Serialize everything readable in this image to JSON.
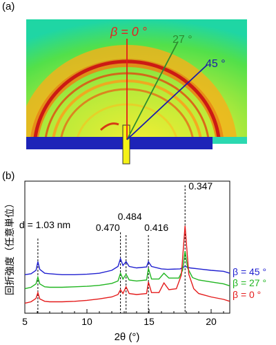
{
  "figure": {
    "panel_a": {
      "label": "(a)",
      "beta_labels": [
        {
          "text": "β = 0 °",
          "color": "#e8201e",
          "angle_deg": 0
        },
        {
          "text": "27 °",
          "color": "#2e8b2e",
          "angle_deg": 27
        },
        {
          "text": "45 °",
          "color": "#1c1ca8",
          "angle_deg": 45
        }
      ]
    },
    "panel_b": {
      "label": "(b)",
      "ylabel": "回折強度（任意単位）",
      "xlabel": "2θ (°)"
    }
  },
  "chart_data": {
    "type": "line",
    "title": "",
    "xlabel": "2θ (°)",
    "ylabel": "回折強度（任意単位）",
    "xlim": [
      5,
      21.5
    ],
    "xticks": [
      5,
      10,
      15,
      20
    ],
    "yticks_visible": false,
    "legend_placement": "right",
    "series": [
      {
        "name": "β = 45 °",
        "color": "#1f1fd0",
        "offset": 0.58,
        "points": [
          [
            5,
            0.03
          ],
          [
            5.5,
            0.05
          ],
          [
            5.9,
            0.12
          ],
          [
            6.05,
            0.3
          ],
          [
            6.2,
            0.14
          ],
          [
            6.6,
            0.06
          ],
          [
            7,
            0.05
          ],
          [
            8,
            0.03
          ],
          [
            9,
            0.03
          ],
          [
            10,
            0.04
          ],
          [
            11,
            0.06
          ],
          [
            12,
            0.12
          ],
          [
            12.5,
            0.2
          ],
          [
            12.7,
            0.36
          ],
          [
            12.9,
            0.22
          ],
          [
            13.15,
            0.3
          ],
          [
            13.4,
            0.2
          ],
          [
            14,
            0.17
          ],
          [
            14.8,
            0.19
          ],
          [
            14.95,
            0.3
          ],
          [
            15.2,
            0.2
          ],
          [
            16,
            0.15
          ],
          [
            16.5,
            0.14
          ],
          [
            17.5,
            0.15
          ],
          [
            17.9,
            0.2
          ],
          [
            18.3,
            0.17
          ],
          [
            19,
            0.15
          ],
          [
            20,
            0.12
          ],
          [
            21,
            0.1
          ],
          [
            21.5,
            0.06
          ]
        ]
      },
      {
        "name": "β = 27 °",
        "color": "#1fb51f",
        "offset": 0.3,
        "points": [
          [
            5,
            0.02
          ],
          [
            5.5,
            0.05
          ],
          [
            5.9,
            0.12
          ],
          [
            6.05,
            0.26
          ],
          [
            6.2,
            0.12
          ],
          [
            6.6,
            0.06
          ],
          [
            7,
            0.05
          ],
          [
            8,
            0.05
          ],
          [
            9,
            0.06
          ],
          [
            10,
            0.07
          ],
          [
            11,
            0.09
          ],
          [
            12,
            0.13
          ],
          [
            12.5,
            0.18
          ],
          [
            12.7,
            0.34
          ],
          [
            12.9,
            0.22
          ],
          [
            13.15,
            0.32
          ],
          [
            13.4,
            0.2
          ],
          [
            14,
            0.18
          ],
          [
            14.8,
            0.2
          ],
          [
            14.95,
            0.44
          ],
          [
            15.2,
            0.22
          ],
          [
            15.8,
            0.22
          ],
          [
            16.2,
            0.34
          ],
          [
            16.6,
            0.24
          ],
          [
            17.4,
            0.24
          ],
          [
            17.7,
            0.4
          ],
          [
            17.9,
            0.8
          ],
          [
            18.1,
            0.45
          ],
          [
            18.5,
            0.25
          ],
          [
            19,
            0.2
          ],
          [
            20,
            0.16
          ],
          [
            21,
            0.12
          ],
          [
            21.5,
            0.08
          ]
        ]
      },
      {
        "name": "β =   0 °",
        "color": "#e41a1a",
        "offset": 0.0,
        "points": [
          [
            5,
            0.02
          ],
          [
            5.5,
            0.05
          ],
          [
            5.9,
            0.12
          ],
          [
            6.05,
            0.24
          ],
          [
            6.2,
            0.11
          ],
          [
            6.6,
            0.06
          ],
          [
            7,
            0.05
          ],
          [
            8,
            0.05
          ],
          [
            9,
            0.06
          ],
          [
            10,
            0.08
          ],
          [
            11,
            0.11
          ],
          [
            12,
            0.15
          ],
          [
            12.5,
            0.2
          ],
          [
            12.7,
            0.3
          ],
          [
            12.9,
            0.22
          ],
          [
            13.15,
            0.36
          ],
          [
            13.4,
            0.22
          ],
          [
            14,
            0.2
          ],
          [
            14.8,
            0.22
          ],
          [
            14.95,
            0.46
          ],
          [
            15.2,
            0.24
          ],
          [
            15.8,
            0.24
          ],
          [
            16.2,
            0.44
          ],
          [
            16.6,
            0.3
          ],
          [
            17.2,
            0.32
          ],
          [
            17.6,
            0.6
          ],
          [
            17.9,
            1.62
          ],
          [
            18.2,
            0.62
          ],
          [
            18.6,
            0.32
          ],
          [
            19,
            0.22
          ],
          [
            20,
            0.15
          ],
          [
            21,
            0.1
          ],
          [
            21.5,
            0.06
          ]
        ]
      }
    ],
    "annotations": [
      {
        "text": "d = 1.03 nm",
        "x": 6.05
      },
      {
        "text": "0.484",
        "x": 12.7
      },
      {
        "text": "0.470",
        "x": 13.15
      },
      {
        "text": "0.416",
        "x": 14.95
      },
      {
        "text": "0.347",
        "x": 17.9
      }
    ]
  }
}
